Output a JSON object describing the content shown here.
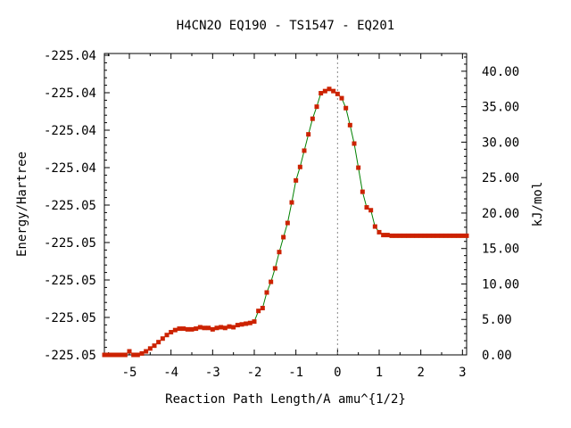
{
  "chart_data": {
    "type": "line",
    "title": "H4CN2O   EQ190 - TS1547 - EQ201",
    "xlabel": "Reaction Path Length/A amu^{1/2}",
    "ylabel": "Energy/Hartree",
    "y2label": "kJ/mol",
    "xlim": [
      -5.6,
      3.1
    ],
    "x_ticks": [
      -5,
      -4,
      -3,
      -2,
      -1,
      0,
      1,
      2,
      3
    ],
    "y_ticks_left": [
      "-225.05",
      "-225.05",
      "-225.05",
      "-225.05",
      "-225.05",
      "-225.04",
      "-225.04",
      "-225.04",
      "-225.04"
    ],
    "y2lim": [
      0,
      42.5
    ],
    "y2_ticks": [
      "0.00",
      "5.00",
      "10.00",
      "15.00",
      "20.00",
      "25.00",
      "30.00",
      "35.00",
      "40.00"
    ],
    "transition_state_x": 0,
    "grid": false,
    "colors": {
      "line": "#008000",
      "points": "#cc2200",
      "ts_line": "#888888"
    },
    "series": [
      {
        "x": [
          -5.6,
          -5.5,
          -5.4,
          -5.3,
          -5.2,
          -5.1,
          -5.0,
          -4.9,
          -4.8,
          -4.7,
          -4.6,
          -4.5,
          -4.4,
          -4.3,
          -4.2,
          -4.1,
          -4.0,
          -3.9,
          -3.8,
          -3.7,
          -3.6,
          -3.5,
          -3.4,
          -3.3,
          -3.2,
          -3.1,
          -3.0,
          -2.9,
          -2.8,
          -2.7,
          -2.6,
          -2.5,
          -2.4,
          -2.3,
          -2.2,
          -2.1,
          -2.0,
          -1.9,
          -1.8,
          -1.7,
          -1.6,
          -1.5,
          -1.4,
          -1.3,
          -1.2,
          -1.1,
          -1.0,
          -0.9,
          -0.8,
          -0.7,
          -0.6,
          -0.5,
          -0.4,
          -0.3,
          -0.2,
          -0.1,
          0.0,
          0.1,
          0.2,
          0.3,
          0.4,
          0.5,
          0.6,
          0.7,
          0.8,
          0.9,
          1.0,
          1.1,
          1.2,
          1.3,
          1.4,
          1.5,
          1.6,
          1.7,
          1.8,
          1.9,
          2.0,
          2.1,
          2.2,
          2.3,
          2.4,
          2.5,
          2.6,
          2.7,
          2.8,
          2.9,
          3.0,
          3.1
        ],
        "values": [
          0.0,
          0.0,
          0.0,
          0.0,
          0.0,
          0.0,
          0.5,
          0.0,
          0.0,
          0.2,
          0.5,
          0.9,
          1.3,
          1.8,
          2.3,
          2.8,
          3.2,
          3.5,
          3.7,
          3.7,
          3.6,
          3.6,
          3.7,
          3.9,
          3.8,
          3.8,
          3.6,
          3.8,
          3.9,
          3.8,
          4.0,
          3.9,
          4.2,
          4.3,
          4.4,
          4.5,
          4.7,
          6.2,
          6.6,
          8.8,
          10.3,
          12.2,
          14.5,
          16.6,
          18.6,
          21.5,
          24.6,
          26.5,
          28.8,
          31.1,
          33.3,
          35.0,
          36.9,
          37.2,
          37.5,
          37.2,
          36.8,
          36.2,
          34.8,
          32.4,
          29.8,
          26.4,
          23.0,
          20.8,
          20.4,
          18.1,
          17.3,
          16.9,
          16.9,
          16.8,
          16.8,
          16.8,
          16.8,
          16.8,
          16.8,
          16.8,
          16.8,
          16.8,
          16.8,
          16.8,
          16.8,
          16.8,
          16.8,
          16.8,
          16.8,
          16.8,
          16.8,
          16.8
        ]
      }
    ]
  }
}
